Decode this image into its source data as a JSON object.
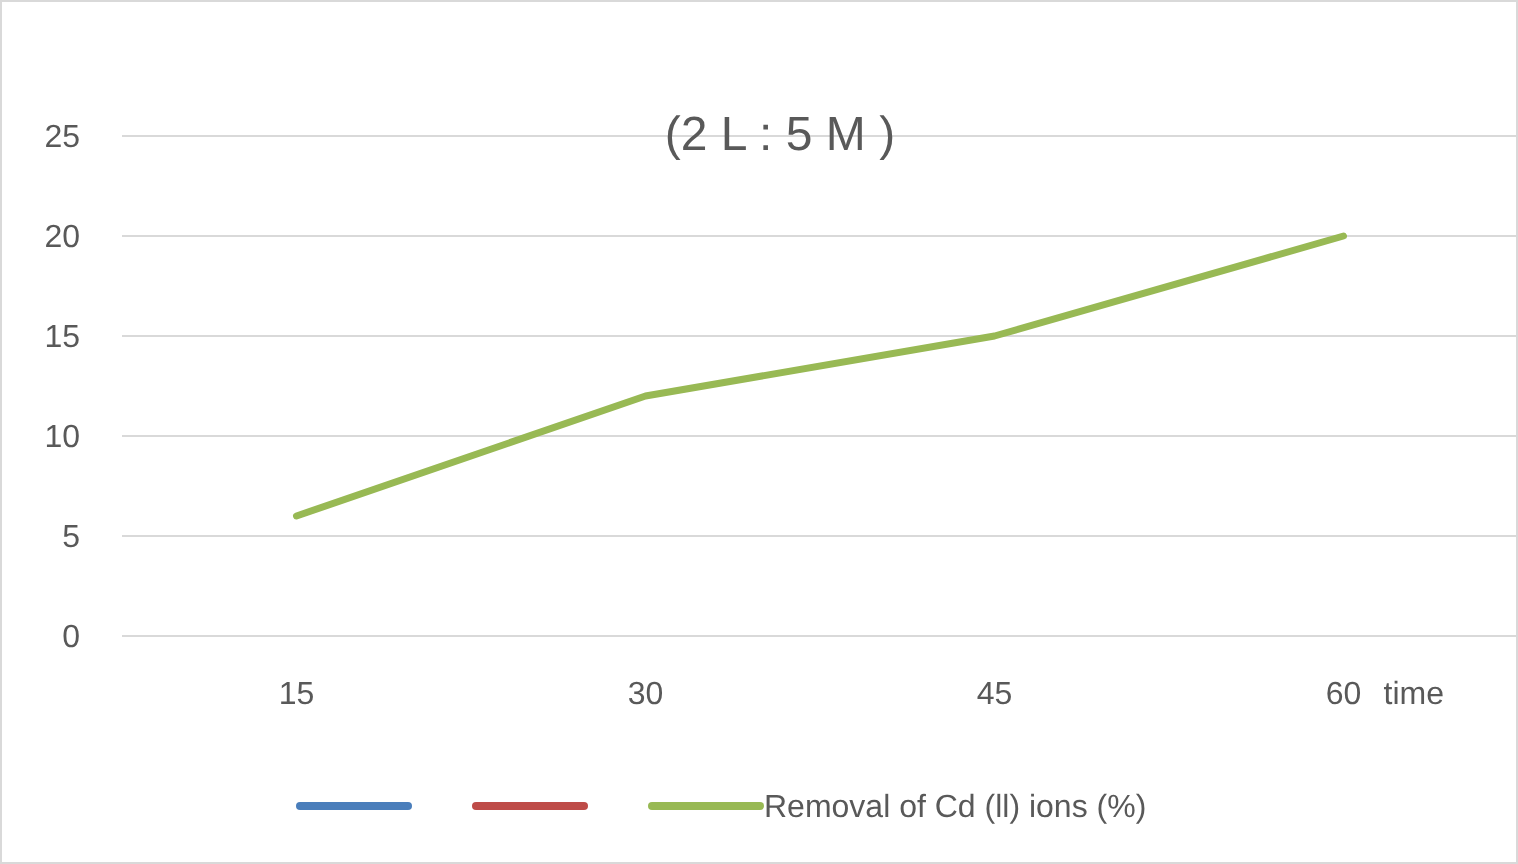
{
  "chart_data": {
    "type": "line",
    "title": "(2 L : 5 M )",
    "xlabel": "time",
    "categories": [
      "15",
      "30",
      "45",
      "60"
    ],
    "series": [
      {
        "color": "#4a7ebb",
        "values": [
          null,
          null,
          null,
          null
        ]
      },
      {
        "color": "#be4b48",
        "values": [
          null,
          null,
          null,
          null
        ]
      },
      {
        "name": "Removal of Cd (ll) ions (%)",
        "color": "#98b954",
        "values": [
          6,
          12,
          15,
          20
        ]
      }
    ],
    "ylim": [
      0,
      25
    ],
    "yticks": [
      0,
      5,
      10,
      15,
      20,
      25
    ],
    "grid": "y",
    "legend": "bottom",
    "marker": "none",
    "line_style": "solid"
  }
}
